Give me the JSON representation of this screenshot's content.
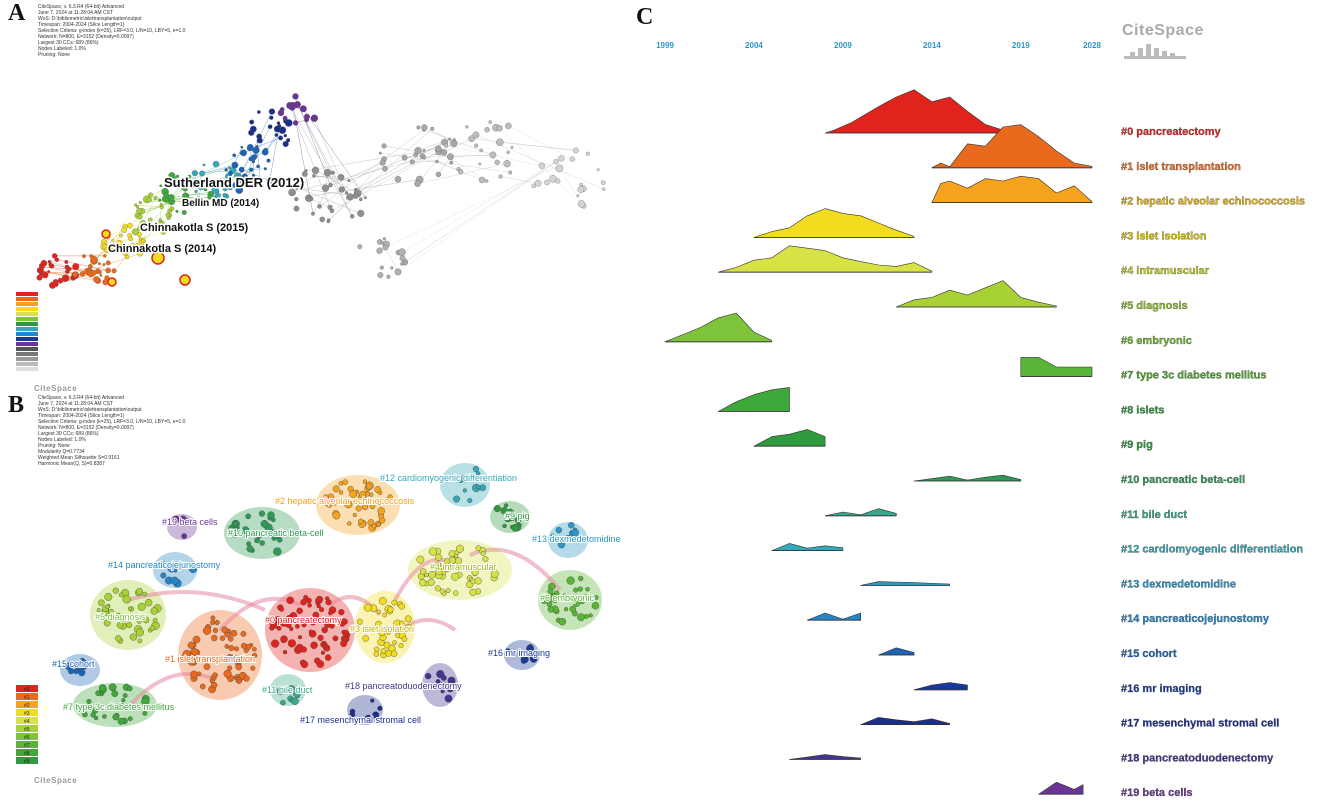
{
  "panels": {
    "a": {
      "letter": "A"
    },
    "b": {
      "letter": "B"
    },
    "c": {
      "letter": "C"
    }
  },
  "logo_text": "CiteSpace",
  "colors": {
    "cluster": [
      "#e0231c",
      "#ea6a1d",
      "#f5a21c",
      "#f2dc1f",
      "#d7e247",
      "#a8d135",
      "#7ec43a",
      "#58b535",
      "#3ea83a",
      "#2f9a3e",
      "#2f9a55",
      "#38a88a",
      "#35a9b8",
      "#2a98c7",
      "#2386c7",
      "#1c64b6",
      "#17399c",
      "#1b2e8a",
      "#42348f",
      "#6a3596"
    ],
    "gray": "#9a9a9a"
  },
  "panel_a": {
    "meta_lines": [
      "CiteSpace, v. 6.3.R4 (64-bit) Advanced",
      "June 7, 2024 at 11:28:04 AM CST",
      "WoS: D:\\bibliometric\\islettransplantation\\output",
      "Timespan: 2004-2024 (Slice Length=1)",
      "Selection Criteria: g-index (k=25), LRF=3.0, L/N=10, LBY=5, e=1.0",
      "Network: N=800, E=3152 (Density=0.0097)",
      "Largest 30 CCs: 689 (86%)",
      "Nodes Labeled: 1.0%",
      "Pruning: None"
    ],
    "node_labels": [
      "Sutherland DER (2012)",
      "Bellin MD (2014)",
      "Chinnakotla S (2015)",
      "Chinnakotla S (2014)"
    ]
  },
  "panel_b": {
    "meta_lines": [
      "CiteSpace, v. 6.3.R4 (64-bit) Advanced",
      "June 7, 2024 at 11:28:04 AM CST",
      "WoS: D:\\bibliometric\\islettransplantation\\output",
      "Timespan: 2004-2024 (Slice Length=1)",
      "Selection Criteria: g-index (k=25), LRF=3.0, L/N=10, LBY=5, e=1.0",
      "Network: N=800, E=3152 (Density=0.0097)",
      "Largest 30 CCs: 689 (86%)",
      "Nodes Labeled: 1.0%",
      "Pruning: None",
      "Modularity Q=0.7734",
      "Weighted Mean Silhouette S=0.9161",
      "Harmonic Mean(Q, S)=0.8387"
    ],
    "cluster_labels": [
      "#0 pancreatectomy",
      "#1 islet transplantation",
      "#2 hepatic alveolar echinococcosis",
      "#3 islet isolation",
      "#4 intramuscular",
      "#5 diagnosis",
      "#6 embryonic",
      "#7 type 3c diabetes mellitus",
      "#9 pig",
      "#10 pancreatic beta-cell",
      "#11 bile duct",
      "#12 cardiomyogenic differentiation",
      "#13 dexmedetomidine",
      "#14 pancreaticojejunostomy",
      "#15 cohort",
      "#16 mr imaging",
      "#17 mesenchymal stromal cell",
      "#18 pancreatoduodenectomy",
      "#19 beta cells"
    ],
    "legend_labels": [
      "#0",
      "#1",
      "#2",
      "#3",
      "#4",
      "#5",
      "#6",
      "#7",
      "#8",
      "#9"
    ]
  },
  "chart_data": {
    "type": "area",
    "x_ticks": [
      1999,
      2004,
      2009,
      2014,
      2019,
      2028
    ],
    "x_range": [
      1999,
      2023
    ],
    "series": [
      {
        "name": "#0 pancreatectomy",
        "points": [
          [
            2008,
            0
          ],
          [
            2008.5,
            0.06
          ],
          [
            2009.5,
            0.22
          ],
          [
            2011,
            0.55
          ],
          [
            2012,
            0.75
          ],
          [
            2013,
            0.9
          ],
          [
            2014,
            0.65
          ],
          [
            2015,
            0.75
          ],
          [
            2016,
            0.45
          ],
          [
            2017,
            0.18
          ],
          [
            2018,
            0.06
          ],
          [
            2019,
            0.03
          ]
        ]
      },
      {
        "name": "#1 islet transplantation",
        "points": [
          [
            2014,
            0
          ],
          [
            2014.5,
            0.1
          ],
          [
            2015,
            0.02
          ],
          [
            2016,
            0.5
          ],
          [
            2017,
            0.45
          ],
          [
            2018,
            0.85
          ],
          [
            2019,
            0.9
          ],
          [
            2020,
            0.65
          ],
          [
            2021,
            0.35
          ],
          [
            2022,
            0.1
          ],
          [
            2023,
            0.03
          ]
        ]
      },
      {
        "name": "#2 hepatic alveolar echinococcosis",
        "points": [
          [
            2014,
            0
          ],
          [
            2014.5,
            0.4
          ],
          [
            2015,
            0.45
          ],
          [
            2016,
            0.3
          ],
          [
            2017,
            0.5
          ],
          [
            2018,
            0.45
          ],
          [
            2019,
            0.55
          ],
          [
            2020,
            0.5
          ],
          [
            2021,
            0.2
          ],
          [
            2022,
            0.35
          ],
          [
            2023,
            0.02
          ]
        ]
      },
      {
        "name": "#3 islet isolation",
        "points": [
          [
            2004,
            0
          ],
          [
            2005,
            0.12
          ],
          [
            2006,
            0.2
          ],
          [
            2007,
            0.45
          ],
          [
            2008,
            0.6
          ],
          [
            2009,
            0.5
          ],
          [
            2010,
            0.45
          ],
          [
            2011,
            0.3
          ],
          [
            2012,
            0.15
          ],
          [
            2013,
            0.02
          ]
        ]
      },
      {
        "name": "#4 intramuscular",
        "points": [
          [
            2002,
            0
          ],
          [
            2003,
            0.1
          ],
          [
            2004,
            0.25
          ],
          [
            2005,
            0.3
          ],
          [
            2006,
            0.55
          ],
          [
            2007,
            0.5
          ],
          [
            2008,
            0.45
          ],
          [
            2009,
            0.3
          ],
          [
            2010,
            0.22
          ],
          [
            2011,
            0.15
          ],
          [
            2012,
            0.12
          ],
          [
            2013,
            0.2
          ],
          [
            2014,
            0.02
          ]
        ]
      },
      {
        "name": "#5 diagnosis",
        "points": [
          [
            2012,
            0
          ],
          [
            2013,
            0.15
          ],
          [
            2014,
            0.2
          ],
          [
            2015,
            0.35
          ],
          [
            2016,
            0.25
          ],
          [
            2017,
            0.4
          ],
          [
            2018,
            0.55
          ],
          [
            2019,
            0.2
          ],
          [
            2020,
            0.1
          ],
          [
            2021,
            0.02
          ]
        ]
      },
      {
        "name": "#6 embryonic",
        "points": [
          [
            1999,
            0
          ],
          [
            2000,
            0.15
          ],
          [
            2001,
            0.3
          ],
          [
            2002,
            0.5
          ],
          [
            2003,
            0.6
          ],
          [
            2004,
            0.2
          ],
          [
            2005,
            0.03
          ]
        ]
      },
      {
        "name": "#7 type 3c diabetes mellitus",
        "points": [
          [
            2019,
            0
          ],
          [
            2019,
            0.4
          ],
          [
            2020,
            0.4
          ],
          [
            2021,
            0.2
          ],
          [
            2022,
            0.2
          ],
          [
            2023,
            0.2
          ]
        ]
      },
      {
        "name": "#8 islets",
        "points": [
          [
            2002,
            0
          ],
          [
            2003,
            0.2
          ],
          [
            2004,
            0.35
          ],
          [
            2005,
            0.45
          ],
          [
            2006,
            0.5
          ]
        ]
      },
      {
        "name": "#9 pig",
        "points": [
          [
            2004,
            0
          ],
          [
            2005,
            0.2
          ],
          [
            2006,
            0.25
          ],
          [
            2007,
            0.35
          ],
          [
            2008,
            0.2
          ]
        ]
      },
      {
        "name": "#10 pancreatic beta-cell",
        "points": [
          [
            2013,
            0
          ],
          [
            2014,
            0.05
          ],
          [
            2015,
            0.1
          ],
          [
            2016,
            0.02
          ],
          [
            2017,
            0.08
          ],
          [
            2018,
            0.12
          ],
          [
            2019,
            0.03
          ]
        ]
      },
      {
        "name": "#11 bile duct",
        "points": [
          [
            2008,
            0
          ],
          [
            2009,
            0.08
          ],
          [
            2010,
            0.02
          ],
          [
            2011,
            0.15
          ],
          [
            2012,
            0.05
          ]
        ]
      },
      {
        "name": "#12 cardiomyogenic differentiation",
        "points": [
          [
            2005,
            0
          ],
          [
            2006,
            0.15
          ],
          [
            2007,
            0.05
          ],
          [
            2008,
            0.1
          ],
          [
            2009,
            0.06
          ]
        ]
      },
      {
        "name": "#13 dexmedetomidine",
        "points": [
          [
            2010,
            0
          ],
          [
            2011,
            0.08
          ],
          [
            2013,
            0.06
          ],
          [
            2015,
            0.03
          ]
        ]
      },
      {
        "name": "#14 pancreaticojejunostomy",
        "points": [
          [
            2007,
            0
          ],
          [
            2008,
            0.15
          ],
          [
            2009,
            0.02
          ],
          [
            2010,
            0.15
          ]
        ]
      },
      {
        "name": "#15 cohort",
        "points": [
          [
            2011,
            0
          ],
          [
            2012,
            0.15
          ],
          [
            2013,
            0.05
          ]
        ]
      },
      {
        "name": "#16 mr imaging",
        "points": [
          [
            2013,
            0
          ],
          [
            2014,
            0.1
          ],
          [
            2015,
            0.15
          ],
          [
            2016,
            0.1
          ]
        ]
      },
      {
        "name": "#17 mesenchymal stromal cell",
        "points": [
          [
            2010,
            0
          ],
          [
            2011,
            0.15
          ],
          [
            2012,
            0.1
          ],
          [
            2013,
            0.06
          ],
          [
            2014,
            0.12
          ],
          [
            2015,
            0.02
          ]
        ]
      },
      {
        "name": "#18 pancreatoduodenectomy",
        "points": [
          [
            2006,
            0
          ],
          [
            2007,
            0.05
          ],
          [
            2008,
            0.1
          ],
          [
            2009,
            0.06
          ],
          [
            2010,
            0.03
          ]
        ]
      },
      {
        "name": "#19 beta cells",
        "points": [
          [
            2020,
            0
          ],
          [
            2021,
            0.25
          ],
          [
            2022,
            0.1
          ],
          [
            2022.5,
            0.2
          ]
        ]
      }
    ]
  }
}
